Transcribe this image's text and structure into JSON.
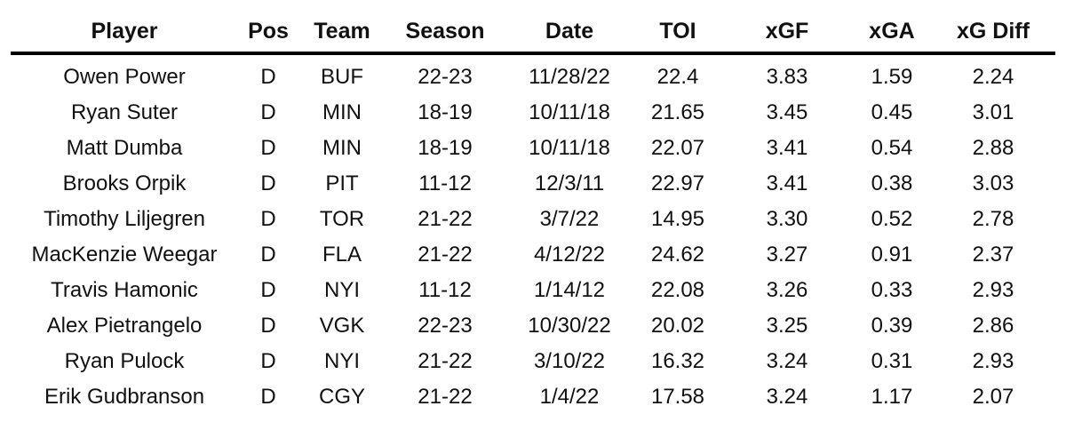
{
  "colors": {
    "background": "#ffffff",
    "text": "#111111",
    "header_rule": "#000000"
  },
  "chart_data": {
    "type": "table",
    "title": "",
    "columns": [
      "Player",
      "Pos",
      "Team",
      "Season",
      "Date",
      "TOI",
      "xGF",
      "xGA",
      "xG Diff"
    ],
    "rows": [
      [
        "Owen Power",
        "D",
        "BUF",
        "22-23",
        "11/28/22",
        "22.4",
        "3.83",
        "1.59",
        "2.24"
      ],
      [
        "Ryan Suter",
        "D",
        "MIN",
        "18-19",
        "10/11/18",
        "21.65",
        "3.45",
        "0.45",
        "3.01"
      ],
      [
        "Matt Dumba",
        "D",
        "MIN",
        "18-19",
        "10/11/18",
        "22.07",
        "3.41",
        "0.54",
        "2.88"
      ],
      [
        "Brooks Orpik",
        "D",
        "PIT",
        "11-12",
        "12/3/11",
        "22.97",
        "3.41",
        "0.38",
        "3.03"
      ],
      [
        "Timothy Liljegren",
        "D",
        "TOR",
        "21-22",
        "3/7/22",
        "14.95",
        "3.30",
        "0.52",
        "2.78"
      ],
      [
        "MacKenzie Weegar",
        "D",
        "FLA",
        "21-22",
        "4/12/22",
        "24.62",
        "3.27",
        "0.91",
        "2.37"
      ],
      [
        "Travis Hamonic",
        "D",
        "NYI",
        "11-12",
        "1/14/12",
        "22.08",
        "3.26",
        "0.33",
        "2.93"
      ],
      [
        "Alex Pietrangelo",
        "D",
        "VGK",
        "22-23",
        "10/30/22",
        "20.02",
        "3.25",
        "0.39",
        "2.86"
      ],
      [
        "Ryan Pulock",
        "D",
        "NYI",
        "21-22",
        "3/10/22",
        "16.32",
        "3.24",
        "0.31",
        "2.93"
      ],
      [
        "Erik Gudbranson",
        "D",
        "CGY",
        "21-22",
        "1/4/22",
        "17.58",
        "3.24",
        "1.17",
        "2.07"
      ]
    ]
  }
}
